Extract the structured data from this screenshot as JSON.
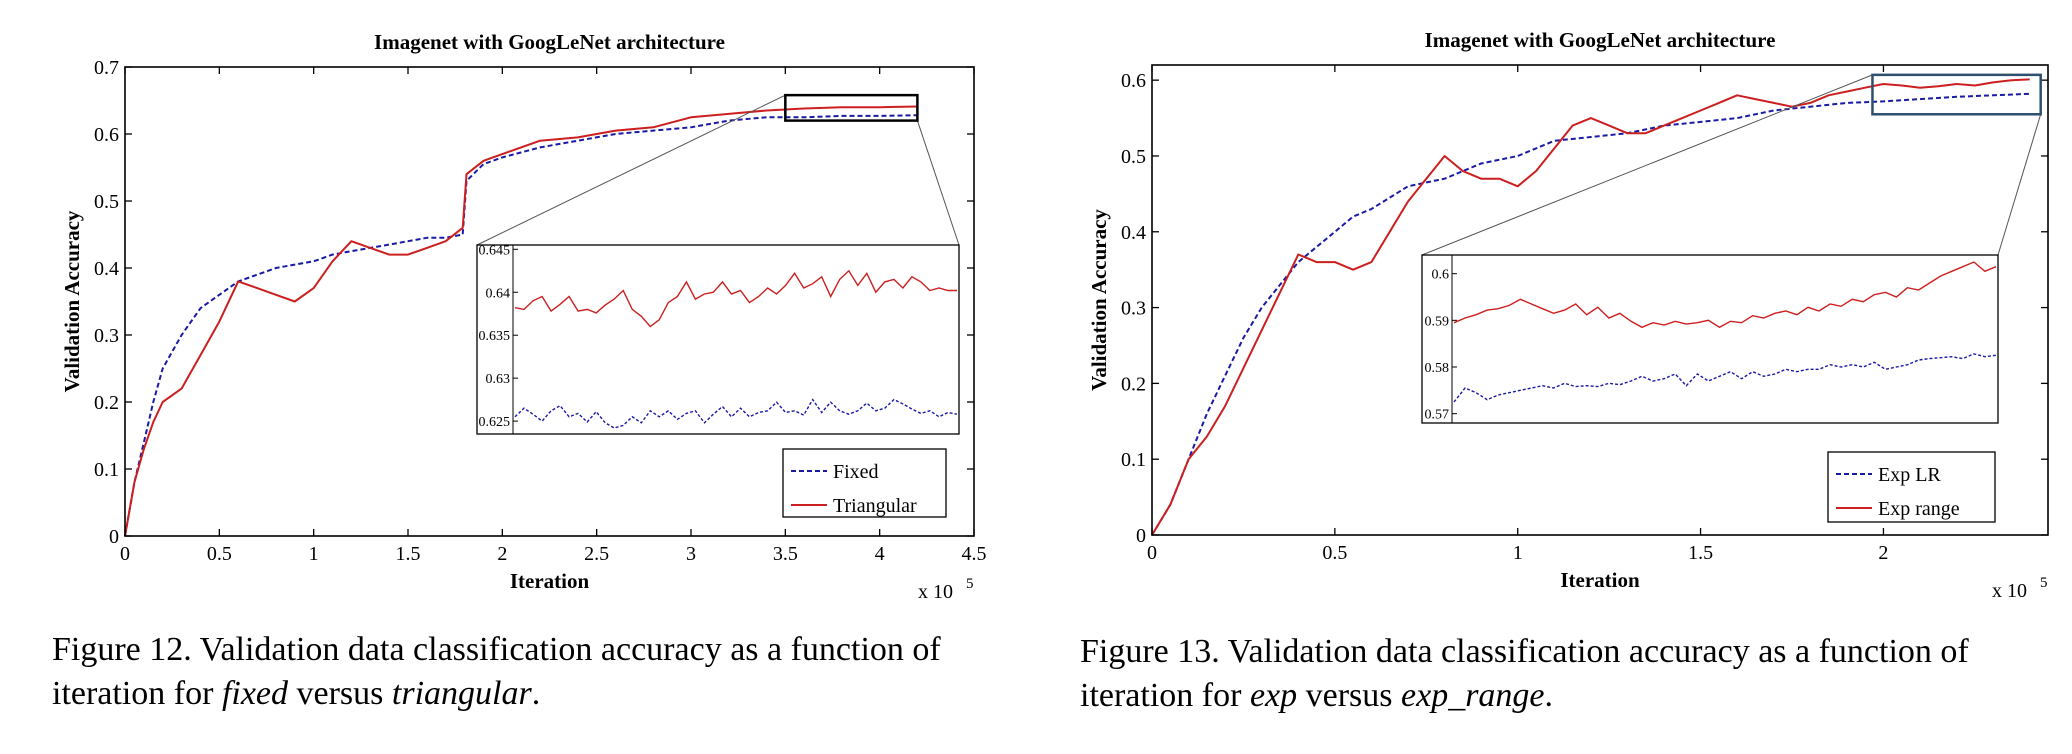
{
  "chart_data": [
    {
      "type": "line",
      "title": "Imagenet with GoogLeNet architecture",
      "xlabel": "Iteration",
      "ylabel": "Validation Accuracy",
      "x_multiplier": "x 10",
      "x_multiplier_exp": "5",
      "xlim": [
        0,
        4.5
      ],
      "ylim": [
        0,
        0.7
      ],
      "xticks": [
        0,
        0.5,
        1,
        1.5,
        2,
        2.5,
        3,
        3.5,
        4,
        4.5
      ],
      "xtick_labels": [
        "0",
        "0.5",
        "1",
        "1.5",
        "2",
        "2.5",
        "3",
        "3.5",
        "4",
        "4.5"
      ],
      "yticks": [
        0,
        0.1,
        0.2,
        0.3,
        0.4,
        0.5,
        0.6,
        0.7
      ],
      "ytick_labels": [
        "0",
        "0.1",
        "0.2",
        "0.3",
        "0.4",
        "0.5",
        "0.6",
        "0.7"
      ],
      "legend_position": "bottom-right",
      "series": [
        {
          "name": "Fixed",
          "color": "#1a1aa6",
          "style": "dashed",
          "x": [
            0,
            0.05,
            0.1,
            0.15,
            0.2,
            0.3,
            0.4,
            0.5,
            0.6,
            0.7,
            0.8,
            0.9,
            1.0,
            1.1,
            1.2,
            1.3,
            1.4,
            1.5,
            1.6,
            1.7,
            1.79,
            1.81,
            1.9,
            2.0,
            2.2,
            2.4,
            2.6,
            2.8,
            3.0,
            3.2,
            3.4,
            3.6,
            3.8,
            4.0,
            4.2
          ],
          "y": [
            0,
            0.08,
            0.14,
            0.2,
            0.25,
            0.3,
            0.34,
            0.36,
            0.38,
            0.39,
            0.4,
            0.405,
            0.41,
            0.42,
            0.425,
            0.43,
            0.435,
            0.44,
            0.445,
            0.445,
            0.45,
            0.53,
            0.555,
            0.565,
            0.58,
            0.59,
            0.6,
            0.605,
            0.61,
            0.62,
            0.625,
            0.625,
            0.627,
            0.627,
            0.628
          ]
        },
        {
          "name": "Triangular",
          "color": "#cc1f1f",
          "style": "solid",
          "x": [
            0,
            0.05,
            0.1,
            0.15,
            0.2,
            0.3,
            0.4,
            0.5,
            0.6,
            0.7,
            0.8,
            0.9,
            1.0,
            1.1,
            1.2,
            1.3,
            1.4,
            1.5,
            1.6,
            1.7,
            1.79,
            1.81,
            1.9,
            2.0,
            2.2,
            2.4,
            2.6,
            2.8,
            3.0,
            3.2,
            3.4,
            3.6,
            3.8,
            4.0,
            4.2
          ],
          "y": [
            0,
            0.08,
            0.13,
            0.17,
            0.2,
            0.22,
            0.27,
            0.32,
            0.38,
            0.37,
            0.36,
            0.35,
            0.37,
            0.41,
            0.44,
            0.43,
            0.42,
            0.42,
            0.43,
            0.44,
            0.46,
            0.54,
            0.56,
            0.57,
            0.59,
            0.595,
            0.605,
            0.61,
            0.625,
            0.63,
            0.635,
            0.638,
            0.64,
            0.64,
            0.641
          ]
        }
      ],
      "inset": {
        "xlim": [
          3.5,
          4.2
        ],
        "ylim": [
          0.6235,
          0.6455
        ],
        "yticks": [
          0.625,
          0.63,
          0.635,
          0.64,
          0.645
        ],
        "ytick_labels": [
          "0.625",
          "0.63",
          "0.635",
          "0.64",
          "0.645"
        ],
        "series": [
          {
            "name": "Fixed",
            "color": "#1a1aa6",
            "style": "dashed",
            "y": [
              0.6255,
              0.6265,
              0.6258,
              0.625,
              0.6262,
              0.6268,
              0.6255,
              0.6259,
              0.6249,
              0.6261,
              0.6248,
              0.6242,
              0.6245,
              0.6255,
              0.6248,
              0.6262,
              0.6255,
              0.6262,
              0.6252,
              0.6259,
              0.6262,
              0.6248,
              0.6258,
              0.6267,
              0.6255,
              0.6265,
              0.6255,
              0.626,
              0.6262,
              0.6272,
              0.626,
              0.6262,
              0.6257,
              0.6275,
              0.626,
              0.6272,
              0.6262,
              0.6258,
              0.6262,
              0.6271,
              0.6262,
              0.6265,
              0.6275,
              0.627,
              0.6264,
              0.6259,
              0.6262,
              0.6255,
              0.626,
              0.6258
            ]
          },
          {
            "name": "Triangular",
            "color": "#cc1f1f",
            "style": "solid",
            "y": [
              0.6382,
              0.638,
              0.639,
              0.6395,
              0.6378,
              0.6386,
              0.6395,
              0.6378,
              0.638,
              0.6376,
              0.6385,
              0.6392,
              0.6402,
              0.638,
              0.6372,
              0.636,
              0.6368,
              0.6388,
              0.6395,
              0.6412,
              0.6392,
              0.6398,
              0.64,
              0.6412,
              0.6398,
              0.6402,
              0.6388,
              0.6395,
              0.6405,
              0.6398,
              0.6408,
              0.6422,
              0.6405,
              0.641,
              0.6418,
              0.6395,
              0.6415,
              0.6425,
              0.6408,
              0.6422,
              0.64,
              0.6412,
              0.6415,
              0.6405,
              0.6418,
              0.6412,
              0.6402,
              0.6405,
              0.6402,
              0.6402
            ]
          }
        ]
      }
    },
    {
      "type": "line",
      "title": "Imagenet with GoogLeNet architecture",
      "xlabel": "Iteration",
      "ylabel": "Validation Accuracy",
      "x_multiplier": "x 10",
      "x_multiplier_exp": "5",
      "xlim": [
        0,
        2.45
      ],
      "ylim": [
        0,
        0.62
      ],
      "xticks": [
        0,
        0.5,
        1,
        1.5,
        2
      ],
      "xtick_labels": [
        "0",
        "0.5",
        "1",
        "1.5",
        "2"
      ],
      "yticks": [
        0,
        0.1,
        0.2,
        0.3,
        0.4,
        0.5,
        0.6
      ],
      "ytick_labels": [
        "0",
        "0.1",
        "0.2",
        "0.3",
        "0.4",
        "0.5",
        "0.6"
      ],
      "legend_position": "bottom-right",
      "series": [
        {
          "name": "Exp LR",
          "color": "#1a1aa6",
          "style": "dashed",
          "x": [
            0,
            0.05,
            0.1,
            0.15,
            0.2,
            0.25,
            0.3,
            0.35,
            0.4,
            0.45,
            0.5,
            0.55,
            0.6,
            0.7,
            0.8,
            0.9,
            1.0,
            1.1,
            1.2,
            1.3,
            1.4,
            1.5,
            1.6,
            1.7,
            1.8,
            1.9,
            2.0,
            2.1,
            2.2,
            2.3,
            2.4
          ],
          "y": [
            0,
            0.04,
            0.1,
            0.16,
            0.21,
            0.26,
            0.3,
            0.33,
            0.36,
            0.38,
            0.4,
            0.42,
            0.43,
            0.46,
            0.47,
            0.49,
            0.5,
            0.52,
            0.525,
            0.53,
            0.54,
            0.545,
            0.55,
            0.56,
            0.565,
            0.57,
            0.572,
            0.575,
            0.578,
            0.58,
            0.582
          ]
        },
        {
          "name": "Exp range",
          "color": "#cc1f1f",
          "style": "solid",
          "x": [
            0,
            0.05,
            0.1,
            0.15,
            0.2,
            0.25,
            0.3,
            0.35,
            0.4,
            0.45,
            0.5,
            0.55,
            0.6,
            0.65,
            0.7,
            0.75,
            0.8,
            0.85,
            0.9,
            0.95,
            1.0,
            1.05,
            1.1,
            1.15,
            1.2,
            1.25,
            1.3,
            1.35,
            1.4,
            1.45,
            1.5,
            1.55,
            1.6,
            1.65,
            1.7,
            1.75,
            1.8,
            1.85,
            1.9,
            1.95,
            2.0,
            2.05,
            2.1,
            2.15,
            2.2,
            2.25,
            2.3,
            2.35,
            2.4
          ],
          "y": [
            0,
            0.04,
            0.1,
            0.13,
            0.17,
            0.22,
            0.27,
            0.32,
            0.37,
            0.36,
            0.36,
            0.35,
            0.36,
            0.4,
            0.44,
            0.47,
            0.5,
            0.48,
            0.47,
            0.47,
            0.46,
            0.48,
            0.51,
            0.54,
            0.55,
            0.54,
            0.53,
            0.53,
            0.54,
            0.55,
            0.56,
            0.57,
            0.58,
            0.575,
            0.57,
            0.565,
            0.57,
            0.58,
            0.585,
            0.59,
            0.595,
            0.593,
            0.59,
            0.592,
            0.595,
            0.593,
            0.597,
            0.6,
            0.601
          ]
        }
      ],
      "inset": {
        "xlim": [
          1.97,
          2.43
        ],
        "ylim": [
          0.568,
          0.604
        ],
        "yticks": [
          0.57,
          0.58,
          0.59,
          0.6
        ],
        "ytick_labels": [
          "0.57",
          "0.58",
          "0.59",
          "0.6"
        ],
        "series": [
          {
            "name": "Exp LR",
            "color": "#1a1aa6",
            "style": "dashed",
            "y": [
              0.5725,
              0.5755,
              0.5745,
              0.573,
              0.574,
              0.5745,
              0.575,
              0.5755,
              0.576,
              0.5755,
              0.5765,
              0.5758,
              0.576,
              0.5758,
              0.5765,
              0.5762,
              0.577,
              0.578,
              0.577,
              0.5775,
              0.5785,
              0.576,
              0.5785,
              0.577,
              0.578,
              0.579,
              0.5775,
              0.579,
              0.578,
              0.5785,
              0.5795,
              0.579,
              0.5795,
              0.5795,
              0.5805,
              0.58,
              0.5805,
              0.58,
              0.581,
              0.5795,
              0.58,
              0.5805,
              0.5815,
              0.5818,
              0.582,
              0.5822,
              0.5818,
              0.5828,
              0.5822,
              0.5825
            ]
          },
          {
            "name": "Exp range",
            "color": "#cc1f1f",
            "style": "solid",
            "y": [
              0.5895,
              0.5905,
              0.5912,
              0.5922,
              0.5925,
              0.5932,
              0.5945,
              0.5935,
              0.5925,
              0.5915,
              0.5922,
              0.5935,
              0.5912,
              0.5928,
              0.5905,
              0.5915,
              0.5898,
              0.5885,
              0.5895,
              0.589,
              0.5898,
              0.5892,
              0.5895,
              0.59,
              0.5885,
              0.5898,
              0.5895,
              0.591,
              0.5905,
              0.5915,
              0.592,
              0.5912,
              0.5928,
              0.592,
              0.5935,
              0.593,
              0.5945,
              0.594,
              0.5955,
              0.596,
              0.595,
              0.597,
              0.5965,
              0.598,
              0.5995,
              0.6005,
              0.6015,
              0.6025,
              0.6005,
              0.6015
            ]
          }
        ]
      }
    }
  ],
  "captions": {
    "left": {
      "prefix": "Figure 12. Validation data classification accuracy as a function of iteration for ",
      "term1": "fixed",
      "middle": " versus ",
      "term2": "triangular",
      "suffix": "."
    },
    "right": {
      "prefix": "Figure 13. Validation data classification accuracy as a function of iteration for ",
      "term1": "exp",
      "middle": " versus ",
      "term2": "exp_range",
      "suffix": "."
    }
  }
}
